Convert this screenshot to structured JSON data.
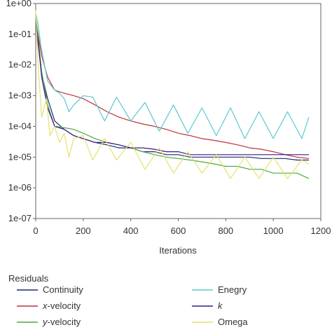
{
  "chart_data": {
    "type": "line",
    "title": "",
    "xlabel": "Iterations",
    "ylabel": "",
    "xlim": [
      0,
      1200
    ],
    "ylim": [
      1e-07,
      1
    ],
    "yscale": "log",
    "xticks": [
      0,
      200,
      400,
      600,
      800,
      1000,
      1200
    ],
    "xtick_labels": [
      "0",
      "200",
      "400",
      "600",
      "800",
      "1000",
      "1200"
    ],
    "yticks": [
      1,
      0.1,
      0.01,
      0.001,
      0.0001,
      1e-05,
      1e-06,
      1e-07
    ],
    "ytick_labels": [
      "1e+00",
      "1e-01",
      "1e-02",
      "1e-03",
      "1e-04",
      "1e-05",
      "1e-06",
      "1e-07"
    ],
    "grid": false,
    "legend": {
      "title": "Residuals",
      "placement": "bottom",
      "entries": [
        {
          "label_pre": "",
          "label_main": "Continuity",
          "label_post": "",
          "italic": false,
          "color": "#1a2a6b"
        },
        {
          "label_pre": "",
          "label_main": "x",
          "label_post": "-velocity",
          "italic": true,
          "color": "#c0303a"
        },
        {
          "label_pre": "",
          "label_main": "y",
          "label_post": "-velocity",
          "italic": true,
          "color": "#4caa3a"
        },
        {
          "label_pre": "",
          "label_main": "Enegry",
          "label_post": "",
          "italic": false,
          "color": "#5bc8d0"
        },
        {
          "label_pre": "",
          "label_main": "k",
          "label_post": "",
          "italic": true,
          "color": "#3a1a8a"
        },
        {
          "label_pre": "",
          "label_main": "Omega",
          "label_post": "",
          "italic": false,
          "color": "#e8e070"
        }
      ]
    },
    "series": [
      {
        "name": "Continuity",
        "color": "#1a2a6b",
        "x": [
          0,
          10,
          25,
          50,
          80,
          120,
          160,
          200,
          250,
          300,
          350,
          400,
          450,
          500,
          550,
          600,
          650,
          700,
          750,
          800,
          850,
          900,
          950,
          1000,
          1050,
          1100,
          1150
        ],
        "y": [
          0.2,
          0.05,
          0.005,
          0.0008,
          0.00015,
          8e-05,
          5e-05,
          4e-05,
          3e-05,
          2.5e-05,
          2e-05,
          2e-05,
          1.5e-05,
          1.5e-05,
          1.2e-05,
          1.2e-05,
          1e-05,
          1e-05,
          1e-05,
          1e-05,
          1e-05,
          1e-05,
          9e-06,
          9e-06,
          9e-06,
          8e-06,
          8e-06
        ]
      },
      {
        "name": "x-velocity",
        "color": "#c0303a",
        "x": [
          0,
          10,
          25,
          50,
          80,
          120,
          160,
          200,
          250,
          300,
          350,
          400,
          450,
          500,
          550,
          600,
          650,
          700,
          750,
          800,
          850,
          900,
          950,
          1000,
          1050,
          1100,
          1150
        ],
        "y": [
          0.3,
          0.1,
          0.02,
          0.004,
          0.0015,
          0.0012,
          0.001,
          0.0008,
          0.0005,
          0.0003,
          0.0002,
          0.00015,
          0.00012,
          0.0001,
          8e-05,
          6e-05,
          5e-05,
          4e-05,
          3.5e-05,
          3e-05,
          2.5e-05,
          2e-05,
          1.8e-05,
          1.5e-05,
          1.2e-05,
          1e-05,
          9e-06
        ]
      },
      {
        "name": "y-velocity",
        "color": "#4caa3a",
        "x": [
          0,
          10,
          25,
          50,
          80,
          120,
          160,
          200,
          250,
          300,
          350,
          400,
          450,
          500,
          550,
          600,
          650,
          700,
          750,
          800,
          850,
          900,
          950,
          1000,
          1050,
          1100,
          1150
        ],
        "y": [
          0.4,
          0.08,
          0.006,
          0.0005,
          0.0001,
          9e-05,
          8e-05,
          6e-05,
          4e-05,
          3e-05,
          2.5e-05,
          2e-05,
          1.5e-05,
          1.2e-05,
          1e-05,
          9e-06,
          8e-06,
          7e-06,
          6e-06,
          5e-06,
          5e-06,
          4e-06,
          4e-06,
          3e-06,
          3e-06,
          3e-06,
          2e-06
        ]
      },
      {
        "name": "Enegry",
        "color": "#5bc8d0",
        "x": [
          0,
          10,
          25,
          50,
          80,
          100,
          120,
          140,
          160,
          200,
          240,
          290,
          340,
          400,
          460,
          520,
          580,
          640,
          700,
          760,
          820,
          880,
          940,
          1000,
          1060,
          1120,
          1150
        ],
        "y": [
          0.5,
          0.2,
          0.03,
          0.003,
          0.0015,
          0.0012,
          0.0008,
          0.0003,
          0.0005,
          0.001,
          0.0009,
          0.00015,
          0.0009,
          0.00015,
          0.0006,
          7e-05,
          0.0005,
          6e-05,
          0.0004,
          5e-05,
          0.0004,
          4e-05,
          0.0003,
          4e-05,
          0.0003,
          4e-05,
          0.0002
        ]
      },
      {
        "name": "k",
        "color": "#3a1a8a",
        "x": [
          0,
          10,
          25,
          50,
          80,
          120,
          160,
          200,
          250,
          300,
          350,
          400,
          450,
          500,
          550,
          600,
          650,
          700,
          750,
          800,
          850,
          900,
          950,
          1000,
          1050,
          1100,
          1150
        ],
        "y": [
          0.25,
          0.06,
          0.004,
          0.0004,
          0.0001,
          8e-05,
          5e-05,
          4e-05,
          3e-05,
          3e-05,
          2.5e-05,
          2e-05,
          2e-05,
          1.8e-05,
          1.5e-05,
          1.5e-05,
          1.2e-05,
          1.2e-05,
          1.2e-05,
          1.2e-05,
          1.2e-05,
          1.2e-05,
          1.2e-05,
          1.2e-05,
          1.2e-05,
          1.2e-05,
          1.2e-05
        ]
      },
      {
        "name": "Omega",
        "color": "#e8e070",
        "x": [
          0,
          10,
          25,
          45,
          60,
          80,
          100,
          120,
          140,
          160,
          200,
          240,
          290,
          340,
          400,
          460,
          520,
          580,
          640,
          700,
          760,
          820,
          880,
          940,
          1000,
          1060,
          1120,
          1150
        ],
        "y": [
          0.6,
          0.01,
          0.0002,
          0.0008,
          5e-05,
          0.0001,
          3e-05,
          6e-05,
          1e-05,
          4e-05,
          5e-05,
          8e-06,
          4e-05,
          8e-06,
          3e-05,
          4e-06,
          2e-05,
          3e-06,
          1.5e-05,
          3e-06,
          1.2e-05,
          2e-06,
          1e-05,
          2e-06,
          1e-05,
          2e-06,
          8e-06,
          6e-06
        ]
      }
    ]
  }
}
